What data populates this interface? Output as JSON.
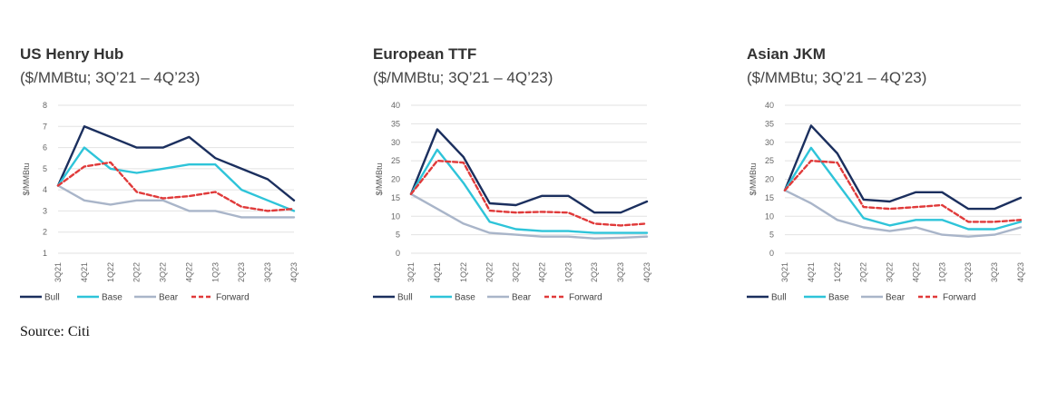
{
  "source": "Source: Citi",
  "chart_data": [
    {
      "type": "line",
      "title": "US Henry Hub",
      "subtitle": "($/MMBtu; 3Q’21 – 4Q’23)",
      "ylabel": "$/MMBtu",
      "xlabel": "",
      "categories": [
        "3Q21",
        "4Q21",
        "1Q22",
        "2Q22",
        "3Q22",
        "4Q22",
        "1Q23",
        "2Q23",
        "3Q23",
        "4Q23"
      ],
      "ylim": [
        1,
        8
      ],
      "yticks": [
        1,
        2,
        3,
        4,
        5,
        6,
        7,
        8
      ],
      "grid": true,
      "legend": "bottom",
      "series": [
        {
          "name": "Bull",
          "color": "#1b2f5e",
          "dash": false,
          "values": [
            4.2,
            7.0,
            6.5,
            6.0,
            6.0,
            6.5,
            5.5,
            5.0,
            4.5,
            3.5
          ]
        },
        {
          "name": "Base",
          "color": "#2ec4d9",
          "dash": false,
          "values": [
            4.2,
            6.0,
            5.0,
            4.8,
            5.0,
            5.2,
            5.2,
            4.0,
            3.5,
            3.0
          ]
        },
        {
          "name": "Bear",
          "color": "#a9b5c9",
          "dash": false,
          "values": [
            4.2,
            3.5,
            3.3,
            3.5,
            3.5,
            3.0,
            3.0,
            2.7,
            2.7,
            2.7
          ]
        },
        {
          "name": "Forward",
          "color": "#e03a3a",
          "dash": true,
          "values": [
            4.2,
            5.1,
            5.3,
            3.9,
            3.6,
            3.7,
            3.9,
            3.2,
            3.0,
            3.1
          ]
        }
      ]
    },
    {
      "type": "line",
      "title": "European TTF",
      "subtitle": "($/MMBtu; 3Q’21 – 4Q’23)",
      "ylabel": "$/MMBtu",
      "xlabel": "",
      "categories": [
        "3Q21",
        "4Q21",
        "1Q22",
        "2Q22",
        "3Q22",
        "4Q22",
        "1Q23",
        "2Q23",
        "3Q23",
        "4Q23"
      ],
      "ylim": [
        0,
        40
      ],
      "yticks": [
        0,
        5,
        10,
        15,
        20,
        25,
        30,
        35,
        40
      ],
      "grid": true,
      "legend": "bottom",
      "series": [
        {
          "name": "Bull",
          "color": "#1b2f5e",
          "dash": false,
          "values": [
            16,
            33.5,
            26,
            13.5,
            13,
            15.5,
            15.5,
            11,
            11,
            14
          ]
        },
        {
          "name": "Base",
          "color": "#2ec4d9",
          "dash": false,
          "values": [
            16,
            28,
            19,
            8.5,
            6.5,
            6,
            6,
            5.5,
            5.5,
            5.5
          ]
        },
        {
          "name": "Bear",
          "color": "#a9b5c9",
          "dash": false,
          "values": [
            16,
            12,
            8,
            5.5,
            5,
            4.5,
            4.5,
            4,
            4.2,
            4.5
          ]
        },
        {
          "name": "Forward",
          "color": "#e03a3a",
          "dash": true,
          "values": [
            16,
            25,
            24.5,
            11.5,
            11,
            11.2,
            11,
            8,
            7.5,
            8
          ]
        }
      ]
    },
    {
      "type": "line",
      "title": "Asian JKM",
      "subtitle": "($/MMBtu; 3Q’21 – 4Q’23)",
      "ylabel": "$/MMBtu",
      "xlabel": "",
      "categories": [
        "3Q21",
        "4Q21",
        "1Q22",
        "2Q22",
        "3Q22",
        "4Q22",
        "1Q23",
        "2Q23",
        "3Q23",
        "4Q23"
      ],
      "ylim": [
        0,
        40
      ],
      "yticks": [
        0,
        5,
        10,
        15,
        20,
        25,
        30,
        35,
        40
      ],
      "grid": true,
      "legend": "bottom",
      "series": [
        {
          "name": "Bull",
          "color": "#1b2f5e",
          "dash": false,
          "values": [
            17,
            34.5,
            27,
            14.5,
            14,
            16.5,
            16.5,
            12,
            12,
            15
          ]
        },
        {
          "name": "Base",
          "color": "#2ec4d9",
          "dash": false,
          "values": [
            17,
            28.5,
            19,
            9.5,
            7.5,
            9,
            9,
            6.5,
            6.5,
            8.5
          ]
        },
        {
          "name": "Bear",
          "color": "#a9b5c9",
          "dash": false,
          "values": [
            17,
            13.5,
            9,
            7,
            6,
            7,
            5,
            4.5,
            5,
            7
          ]
        },
        {
          "name": "Forward",
          "color": "#e03a3a",
          "dash": true,
          "values": [
            17,
            25,
            24.5,
            12.5,
            12,
            12.5,
            13,
            8.5,
            8.5,
            9
          ]
        }
      ]
    }
  ]
}
